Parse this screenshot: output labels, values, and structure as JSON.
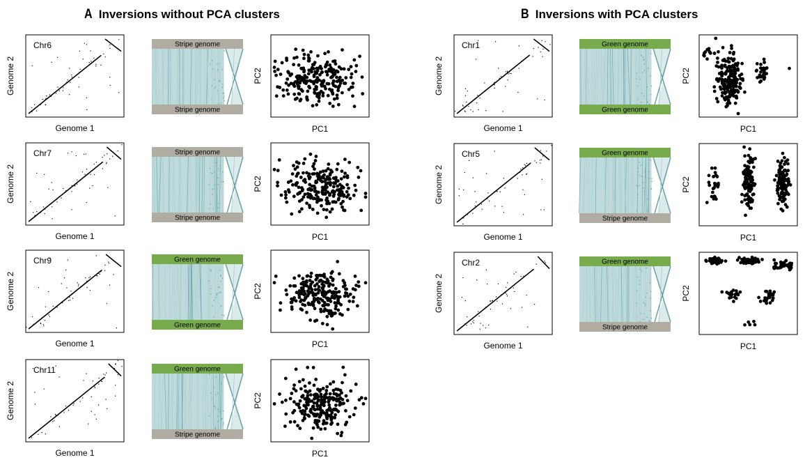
{
  "panels": [
    {
      "letter": "A",
      "title": "Inversions without PCA clusters"
    },
    {
      "letter": "B",
      "title": "Inversions with PCA clusters"
    }
  ],
  "axis_labels": {
    "dot_x": "Genome 1",
    "dot_y": "Genome 2",
    "pca_x": "PC1",
    "pca_y": "PC2"
  },
  "colors": {
    "stripe": "#b0aca1",
    "green": "#77ab4c",
    "synteny": "#bfdadb",
    "synteny_dark": "#5f9ea2"
  },
  "chart_data": [
    {
      "type": "scatter",
      "panel": "A",
      "chromosome": "Chr6",
      "dotplot_label": "Chr6",
      "top_genome": "Stripe genome",
      "bottom_genome": "Stripe genome",
      "pca_pattern": "no-clusters"
    },
    {
      "type": "scatter",
      "panel": "A",
      "chromosome": "Chr7",
      "dotplot_label": "Chr7",
      "top_genome": "Stripe genome",
      "bottom_genome": "Stripe genome",
      "pca_pattern": "no-clusters"
    },
    {
      "type": "scatter",
      "panel": "A",
      "chromosome": "Chr9",
      "dotplot_label": "Chr9",
      "top_genome": "Green genome",
      "bottom_genome": "Green genome",
      "pca_pattern": "no-clusters"
    },
    {
      "type": "scatter",
      "panel": "A",
      "chromosome": "Chr11",
      "dotplot_label": "Chr11",
      "top_genome": "Green genome",
      "bottom_genome": "Stripe genome",
      "pca_pattern": "no-clusters"
    },
    {
      "type": "scatter",
      "panel": "B",
      "chromosome": "Chr1",
      "dotplot_label": "Chr1",
      "top_genome": "Green genome",
      "bottom_genome": "Green genome",
      "pca_pattern": "two-clusters"
    },
    {
      "type": "scatter",
      "panel": "B",
      "chromosome": "Chr5",
      "dotplot_label": "Chr5",
      "top_genome": "Green genome",
      "bottom_genome": "Stripe genome",
      "pca_pattern": "three-clusters"
    },
    {
      "type": "scatter",
      "panel": "B",
      "chromosome": "Chr2",
      "dotplot_label": "Chr2",
      "top_genome": "Green genome",
      "bottom_genome": "Stripe genome",
      "pca_pattern": "six-clusters"
    }
  ]
}
